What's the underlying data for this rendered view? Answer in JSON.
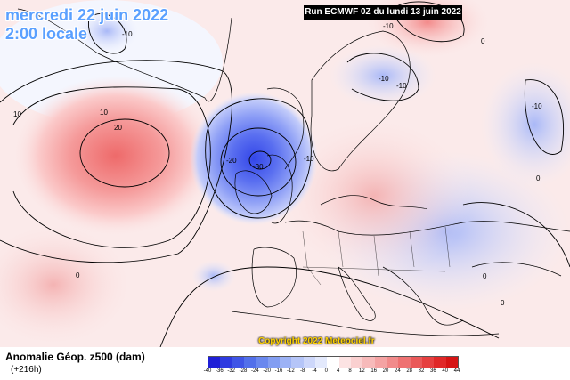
{
  "header": {
    "date": "mercredi 22 juin 2022",
    "time": "2:00 locale",
    "run": "Run ECMWF 0Z du lundi 13 juin 2022"
  },
  "footer": {
    "anomaly_title": "Anomalie Géop. z500 (dam)",
    "forecast_hour": "(+216h)",
    "copyright": "Copyright 2022 Meteociel.fr"
  },
  "legend": {
    "ticks": [
      "-40",
      "-36",
      "-32",
      "-28",
      "-24",
      "-20",
      "-16",
      "-12",
      "-8",
      "-4",
      "0",
      "4",
      "8",
      "12",
      "16",
      "20",
      "24",
      "28",
      "32",
      "36",
      "40",
      "44"
    ],
    "colors": [
      "#1f1fd6",
      "#2e3be0",
      "#3f55e6",
      "#5270ea",
      "#6a88ee",
      "#839ef2",
      "#9cb2f5",
      "#b5c5f8",
      "#cdd7fa",
      "#e3e9fc",
      "#ffffff",
      "#fce3e3",
      "#fad0d0",
      "#f7baba",
      "#f4a3a3",
      "#f18b8b",
      "#ee7272",
      "#ea5959",
      "#e64040",
      "#e02828",
      "#d61414"
    ]
  },
  "contour_labels": [
    "10",
    "-10",
    "-10",
    "-10",
    "-10",
    "0",
    "10",
    "20",
    "-20",
    "-30",
    "-10",
    "0",
    "0",
    "-10",
    "0",
    "0"
  ]
}
